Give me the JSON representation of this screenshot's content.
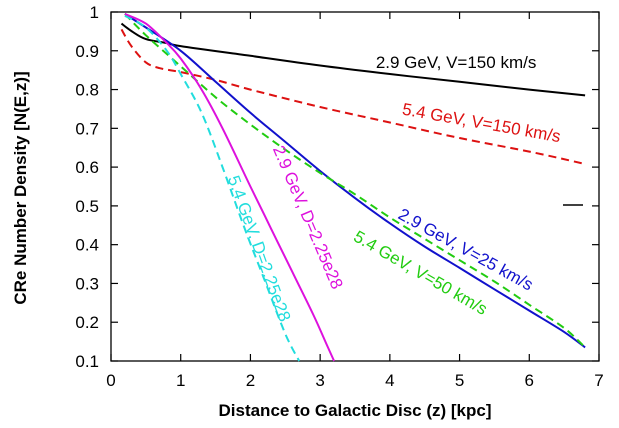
{
  "chart_data": {
    "type": "line",
    "xlabel": "Distance to Galactic Disc (z) [kpc]",
    "ylabel": "CRe Number Density [N(E,z)]",
    "xlim": [
      0,
      7
    ],
    "ylim": [
      0.1,
      1
    ],
    "xticks": [
      0,
      1,
      2,
      3,
      4,
      5,
      6,
      7
    ],
    "yticks": [
      0.1,
      0.2,
      0.3,
      0.4,
      0.5,
      0.6,
      0.7,
      0.8,
      0.9,
      1
    ],
    "ytick_labels": [
      "0.1",
      "0.2",
      "0.3",
      "0.4",
      "0.5",
      "0.6",
      "0.7",
      "0.8",
      "0.9",
      "1"
    ],
    "grid": false,
    "series": [
      {
        "name": "2.9 GeV, V=150 km/s",
        "color": "#000000",
        "dash": "solid",
        "x": [
          0.15,
          0.3,
          0.5,
          0.8,
          1,
          2,
          3,
          4,
          5,
          6,
          6.8
        ],
        "y": [
          0.97,
          0.95,
          0.93,
          0.92,
          0.912,
          0.887,
          0.862,
          0.84,
          0.82,
          0.8,
          0.785
        ]
      },
      {
        "name": "5.4 GeV, V=150 km/s",
        "color": "#dd1111",
        "dash": "dashed",
        "x": [
          0.15,
          0.3,
          0.5,
          0.7,
          1,
          1.5,
          2,
          3,
          4,
          5,
          6,
          6.8
        ],
        "y": [
          0.955,
          0.91,
          0.87,
          0.855,
          0.845,
          0.825,
          0.8,
          0.755,
          0.715,
          0.675,
          0.64,
          0.608
        ]
      },
      {
        "name": "2.9 GeV, V=25 km/s",
        "color": "#1111cc",
        "dash": "solid",
        "x": [
          0.2,
          0.5,
          1,
          1.5,
          2,
          2.5,
          3,
          3.5,
          4,
          4.5,
          5,
          5.5,
          6,
          6.5,
          6.8
        ],
        "y": [
          0.995,
          0.96,
          0.9,
          0.82,
          0.74,
          0.665,
          0.59,
          0.52,
          0.455,
          0.395,
          0.34,
          0.285,
          0.23,
          0.175,
          0.135
        ]
      },
      {
        "name": "5.4 GeV, V=50 km/s",
        "color": "#22cc11",
        "dash": "dashed",
        "x": [
          0.2,
          0.5,
          1,
          1.5,
          2,
          2.5,
          3,
          3.5,
          4,
          4.5,
          5,
          5.5,
          6,
          6.5,
          6.8
        ],
        "y": [
          0.995,
          0.94,
          0.86,
          0.78,
          0.71,
          0.645,
          0.585,
          0.53,
          0.47,
          0.415,
          0.36,
          0.305,
          0.245,
          0.185,
          0.135
        ]
      },
      {
        "name": "2.9 GeV, D=2.25e28",
        "color": "#dd11dd",
        "dash": "solid",
        "x": [
          0.2,
          0.5,
          0.8,
          1,
          1.3,
          1.6,
          2,
          2.3,
          2.6,
          2.9,
          3.1,
          3.2
        ],
        "y": [
          0.995,
          0.97,
          0.92,
          0.88,
          0.8,
          0.7,
          0.55,
          0.44,
          0.33,
          0.22,
          0.14,
          0.1
        ]
      },
      {
        "name": "5.4 GeV, D=2.25e28",
        "color": "#22dddd",
        "dash": "dashed",
        "x": [
          0.2,
          0.5,
          0.8,
          1,
          1.3,
          1.6,
          1.9,
          2.2,
          2.5,
          2.7
        ],
        "y": [
          0.99,
          0.96,
          0.9,
          0.84,
          0.74,
          0.6,
          0.45,
          0.31,
          0.17,
          0.1
        ]
      }
    ],
    "annotations": [
      {
        "text": "2.9 GeV, V=150 km/s",
        "color": "#000000",
        "x": 4.95,
        "y": 0.855,
        "rotate": 0
      },
      {
        "text": "5.4 GeV, V=150 km/s",
        "color": "#dd1111",
        "x": 5.3,
        "y": 0.7,
        "rotate": 10
      },
      {
        "text": "2.9 GeV, V=25 km/s",
        "color": "#1111cc",
        "x": 5.05,
        "y": 0.375,
        "rotate": 29
      },
      {
        "text": "5.4 GeV, V=50 km/s",
        "color": "#22cc11",
        "x": 4.4,
        "y": 0.315,
        "rotate": 30
      },
      {
        "text": "2.9 GeV, D=2.25e28",
        "color": "#dd11dd",
        "x": 2.75,
        "y": 0.465,
        "rotate": 67
      },
      {
        "text": "5.4 GeV, D=2.25e28",
        "color": "#22dddd",
        "x": 2.05,
        "y": 0.385,
        "rotate": 70
      }
    ]
  }
}
